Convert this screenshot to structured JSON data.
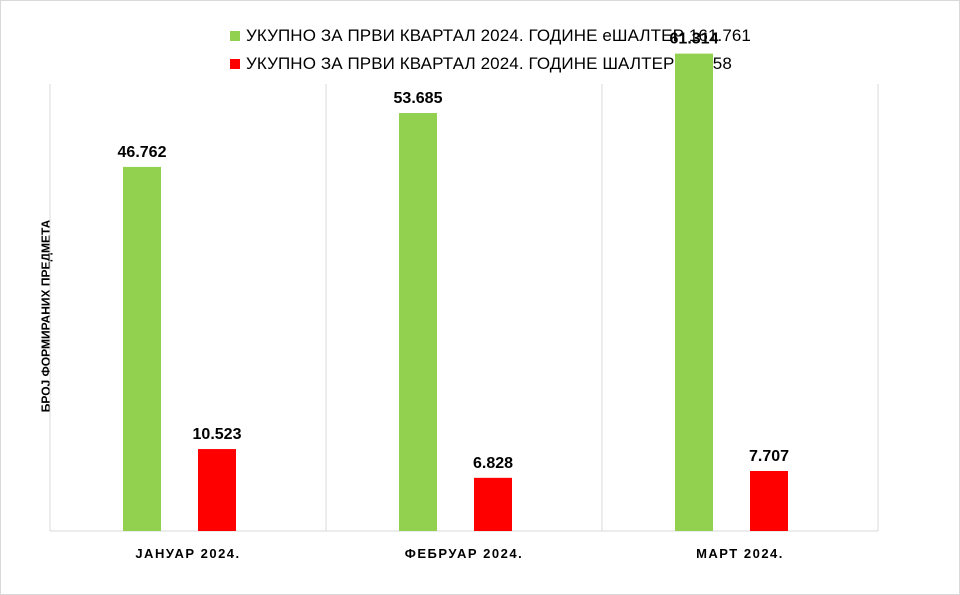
{
  "chart_data": {
    "type": "bar",
    "ylabel": "БРОЈ ФОРМИРАНИХ ПРЕДМЕТА",
    "xlabel": "",
    "categories": [
      "ЈАНУАР 2024.",
      "ФЕБРУАР 2024.",
      "МАРТ 2024."
    ],
    "series": [
      {
        "name": "УКУПНО ЗА ПРВИ КВАРТАЛ 2024. ГОДИНЕ еШАЛТЕР 161.761",
        "color": "#92d050",
        "values": [
          46762,
          53685,
          61314
        ],
        "labels": [
          "46.762",
          "53.685",
          "61.314"
        ]
      },
      {
        "name": "УКУПНО ЗА ПРВИ КВАРТАЛ 2024. ГОДИНЕ ШАЛТЕР 25.058",
        "color": "#ff0000",
        "values": [
          10523,
          6828,
          7707
        ],
        "labels": [
          "10.523",
          "6.828",
          "7.707"
        ]
      }
    ],
    "ylim": [
      0,
      70000
    ],
    "grid": "vertical category separators",
    "legend_position": "top-center"
  }
}
